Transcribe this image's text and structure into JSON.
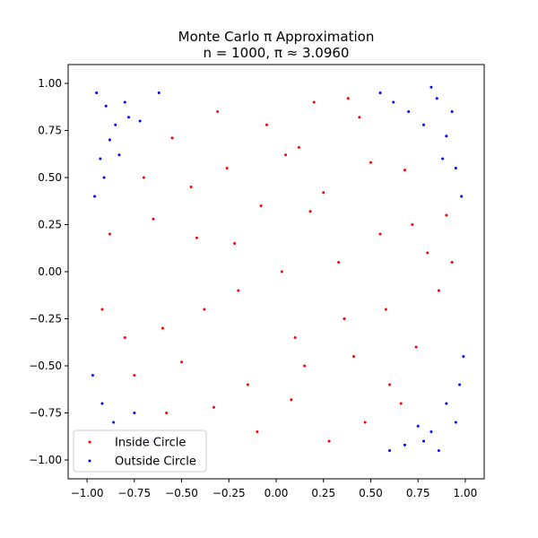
{
  "chart_data": {
    "type": "scatter",
    "title": "Monte Carlo π Approximation",
    "subtitle": "n = 1000, π ≈ 3.0960",
    "xlabel": "",
    "ylabel": "",
    "xlim": [
      -1.1,
      1.1
    ],
    "ylim": [
      -1.1,
      1.1
    ],
    "x_ticks": [
      -1.0,
      -0.75,
      -0.5,
      -0.25,
      0.0,
      0.25,
      0.5,
      0.75,
      1.0
    ],
    "y_ticks": [
      -1.0,
      -0.75,
      -0.5,
      -0.25,
      0.0,
      0.25,
      0.5,
      0.75,
      1.0
    ],
    "x_tick_labels": [
      "−1.00",
      "−0.75",
      "−0.50",
      "−0.25",
      "0.00",
      "0.25",
      "0.50",
      "0.75",
      "1.00"
    ],
    "y_tick_labels": [
      "−1.00",
      "−0.75",
      "−0.50",
      "−0.25",
      "0.00",
      "0.25",
      "0.50",
      "0.75",
      "1.00"
    ],
    "grid": false,
    "legend_position": "lower-left",
    "n_points": 1000,
    "series": [
      {
        "name": "Inside Circle",
        "color": "#ff0000",
        "x": [
          -0.55,
          -0.31,
          0.12,
          0.44,
          -0.7,
          0.68,
          -0.08,
          0.25,
          0.55,
          -0.42,
          0.03,
          -0.2,
          0.36,
          0.8,
          -0.6,
          0.15,
          -0.88,
          0.9,
          -0.33,
          0.6,
          -0.1,
          0.47,
          -0.75,
          0.2,
          0.05,
          -0.5,
          0.72,
          -0.26,
          0.33,
          -0.65,
          0.1,
          0.58,
          -0.15,
          0.86,
          -0.45,
          0.28,
          -0.92,
          0.41,
          -0.05,
          0.66,
          -0.38,
          0.18,
          0.93,
          -0.8,
          0.5,
          -0.22,
          0.74,
          -0.58,
          0.08,
          0.38
        ],
        "y": [
          0.71,
          0.85,
          0.66,
          0.82,
          0.5,
          0.54,
          0.35,
          0.42,
          0.2,
          0.18,
          0.0,
          -0.1,
          -0.25,
          0.1,
          -0.3,
          -0.5,
          0.2,
          0.3,
          -0.72,
          -0.6,
          -0.85,
          -0.8,
          -0.55,
          0.9,
          0.62,
          -0.48,
          0.25,
          0.55,
          0.05,
          0.28,
          -0.35,
          -0.2,
          -0.6,
          -0.1,
          0.45,
          -0.9,
          -0.2,
          -0.45,
          0.78,
          -0.7,
          -0.2,
          0.32,
          0.05,
          -0.35,
          0.58,
          0.15,
          -0.4,
          -0.75,
          -0.68,
          0.92
        ]
      },
      {
        "name": "Outside Circle",
        "color": "#0000ff",
        "x": [
          -0.95,
          -0.9,
          -0.85,
          -0.8,
          -0.93,
          -0.88,
          -0.78,
          -0.96,
          -0.91,
          -0.83,
          -0.72,
          -0.62,
          0.55,
          0.62,
          0.7,
          0.78,
          0.85,
          0.9,
          0.95,
          0.98,
          0.82,
          0.88,
          0.93,
          -0.97,
          -0.92,
          -0.86,
          -0.75,
          -0.65,
          0.6,
          0.68,
          0.75,
          0.82,
          0.9,
          0.95,
          0.99,
          0.86,
          0.78,
          0.97
        ],
        "y": [
          0.95,
          0.88,
          0.78,
          0.9,
          0.6,
          0.7,
          0.82,
          0.4,
          0.5,
          0.62,
          0.8,
          0.95,
          0.95,
          0.9,
          0.85,
          0.78,
          0.92,
          0.72,
          0.55,
          0.4,
          0.98,
          0.6,
          0.85,
          -0.55,
          -0.7,
          -0.8,
          -0.75,
          -0.9,
          -0.95,
          -0.92,
          -0.82,
          -0.85,
          -0.7,
          -0.8,
          -0.45,
          -0.95,
          -0.9,
          -0.6
        ]
      }
    ]
  }
}
